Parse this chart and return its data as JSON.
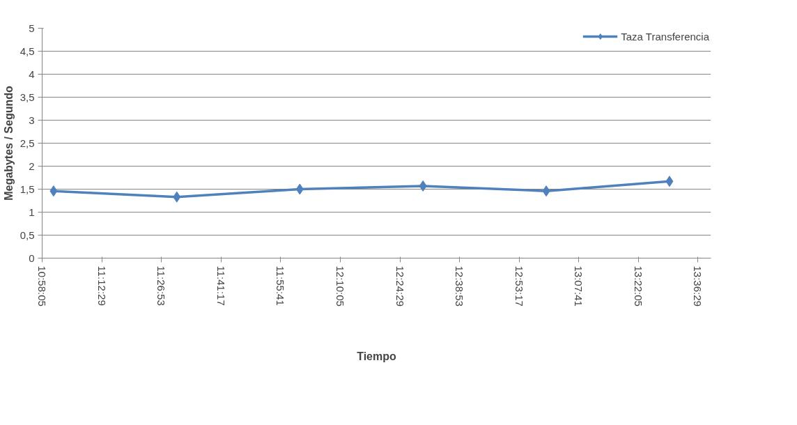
{
  "chart_data": {
    "type": "line",
    "xlabel": "Tiempo",
    "ylabel": "Megabytes / Segundo",
    "x": [
      11.014,
      11.51,
      12.005,
      12.501,
      12.997,
      13.493
    ],
    "series": [
      {
        "name": "Taza Transferencia",
        "color": "#4f81bd",
        "values": [
          1.46,
          1.33,
          1.5,
          1.57,
          1.46,
          1.67
        ]
      }
    ],
    "xlim": [
      10.968056,
      13.66
    ],
    "xticks": [
      {
        "value": 10.968056,
        "label": "10:58:05"
      },
      {
        "value": 11.208056,
        "label": "11:12:29"
      },
      {
        "value": 11.448056,
        "label": "11:26:53"
      },
      {
        "value": 11.688056,
        "label": "11:41:17"
      },
      {
        "value": 11.928056,
        "label": "11:55:41"
      },
      {
        "value": 12.168056,
        "label": "12:10:05"
      },
      {
        "value": 12.408056,
        "label": "12:24:29"
      },
      {
        "value": 12.648056,
        "label": "12:38:53"
      },
      {
        "value": 12.888056,
        "label": "12:53:17"
      },
      {
        "value": 13.128056,
        "label": "13:07:41"
      },
      {
        "value": 13.368056,
        "label": "13:22:05"
      },
      {
        "value": 13.608056,
        "label": "13:36:29"
      }
    ],
    "ylim": [
      0,
      5
    ],
    "yticks": [
      0,
      {
        "value": 0.5,
        "label": "0,5"
      },
      1,
      {
        "value": 1.5,
        "label": "1,5"
      },
      2,
      {
        "value": 2.5,
        "label": "2,5"
      },
      3,
      {
        "value": 3.5,
        "label": "3,5"
      },
      4,
      {
        "value": 4.5,
        "label": "4,5"
      },
      5
    ],
    "grid": "y",
    "legend": "top right",
    "marker": "diamond",
    "line_style": "solid"
  }
}
